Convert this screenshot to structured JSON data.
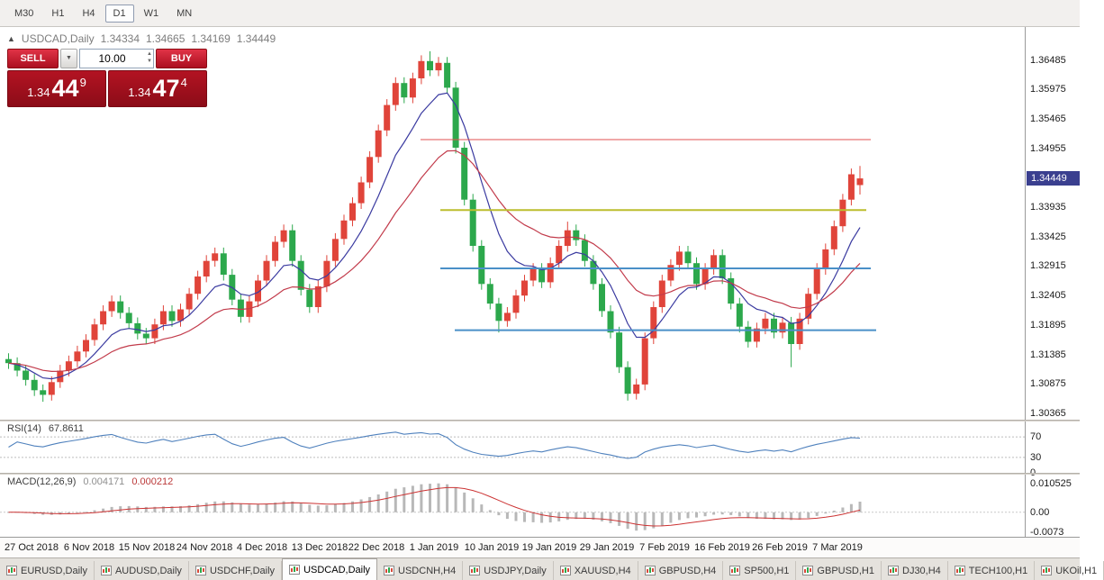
{
  "toolbar": {
    "timeframes": [
      {
        "label": "M30",
        "active": false
      },
      {
        "label": "H1",
        "active": false
      },
      {
        "label": "H4",
        "active": false
      },
      {
        "label": "D1",
        "active": true
      },
      {
        "label": "W1",
        "active": false
      },
      {
        "label": "MN",
        "active": false
      }
    ]
  },
  "chart_header": {
    "symbol_title": "USDCAD,Daily",
    "open": "1.34334",
    "high": "1.34665",
    "low": "1.34169",
    "close": "1.34449"
  },
  "trade_widget": {
    "sell_label": "SELL",
    "buy_label": "BUY",
    "volume": "10.00",
    "sell_price_big": "1.34",
    "sell_price_large": "44",
    "sell_price_sup": "9",
    "buy_price_big": "1.34",
    "buy_price_large": "47",
    "buy_price_sup": "4"
  },
  "price_scale": {
    "current_badge": "1.34449"
  },
  "chart_data": [
    {
      "panel": "main",
      "type": "candlestick",
      "symbol": "USDCAD",
      "timeframe": "Daily",
      "up_color": "#e0443a",
      "down_color": "#2ca84c",
      "price_range": [
        1.3027,
        1.3707
      ],
      "current_price": 1.34449,
      "price_ticks": [
        1.36485,
        1.35975,
        1.35465,
        1.34955,
        1.33935,
        1.33425,
        1.32915,
        1.32405,
        1.31895,
        1.31385,
        1.30875,
        1.30365
      ],
      "date_labels": [
        "27 Oct 2018",
        "6 Nov 2018",
        "15 Nov 2018",
        "24 Nov 2018",
        "4 Dec 2018",
        "13 Dec 2018",
        "22 Dec 2018",
        "1 Jan 2019",
        "10 Jan 2019",
        "19 Jan 2019",
        "29 Jan 2019",
        "7 Feb 2019",
        "16 Feb 2019",
        "26 Feb 2019",
        "7 Mar 2019"
      ],
      "moving_averages": [
        {
          "period": 8,
          "method": "ema",
          "color": "#3a3aa0"
        },
        {
          "period": 20,
          "method": "ema",
          "color": "#c23b4b"
        }
      ],
      "hlines": [
        {
          "price": 1.3512,
          "color": "#e05151",
          "width": 1,
          "x0": 0.41,
          "x1": 0.85
        },
        {
          "price": 1.339,
          "color": "#bcbe2e",
          "width": 2,
          "x0": 0.43,
          "x1": 0.845
        },
        {
          "price": 1.3289,
          "color": "#4a90c8",
          "width": 2,
          "x0": 0.43,
          "x1": 0.85
        },
        {
          "price": 1.3182,
          "color": "#4a90c8",
          "width": 2,
          "x0": 0.444,
          "x1": 0.855
        }
      ],
      "candles": [
        [
          1.3132,
          1.3142,
          1.3115,
          1.3125
        ],
        [
          1.3125,
          1.3135,
          1.3102,
          1.3112
        ],
        [
          1.3112,
          1.3122,
          1.3086,
          1.3096
        ],
        [
          1.3096,
          1.3106,
          1.3068,
          1.3078
        ],
        [
          1.3078,
          1.3088,
          1.3058,
          1.307
        ],
        [
          1.307,
          1.3102,
          1.306,
          1.3092
        ],
        [
          1.3092,
          1.3122,
          1.3082,
          1.3112
        ],
        [
          1.3112,
          1.3138,
          1.3102,
          1.3128
        ],
        [
          1.3128,
          1.3155,
          1.3118,
          1.3145
        ],
        [
          1.3145,
          1.3175,
          1.3135,
          1.3165
        ],
        [
          1.3165,
          1.3202,
          1.3155,
          1.3192
        ],
        [
          1.3192,
          1.3225,
          1.3182,
          1.3215
        ],
        [
          1.3215,
          1.3242,
          1.3205,
          1.3232
        ],
        [
          1.3232,
          1.3242,
          1.3202,
          1.3212
        ],
        [
          1.3212,
          1.3222,
          1.3184,
          1.3194
        ],
        [
          1.3194,
          1.3204,
          1.3166,
          1.3176
        ],
        [
          1.3176,
          1.3186,
          1.3158,
          1.3168
        ],
        [
          1.3168,
          1.3202,
          1.3158,
          1.3192
        ],
        [
          1.3192,
          1.3225,
          1.3182,
          1.3215
        ],
        [
          1.3215,
          1.3225,
          1.3188,
          1.3198
        ],
        [
          1.3198,
          1.3228,
          1.3188,
          1.3218
        ],
        [
          1.3218,
          1.3255,
          1.3208,
          1.3245
        ],
        [
          1.3245,
          1.3285,
          1.3235,
          1.3275
        ],
        [
          1.3275,
          1.3312,
          1.3265,
          1.3302
        ],
        [
          1.3302,
          1.3325,
          1.3292,
          1.3315
        ],
        [
          1.3315,
          1.3325,
          1.3268,
          1.3278
        ],
        [
          1.3278,
          1.3288,
          1.3225,
          1.3235
        ],
        [
          1.3235,
          1.3245,
          1.3195,
          1.3205
        ],
        [
          1.3205,
          1.3242,
          1.3195,
          1.3232
        ],
        [
          1.3232,
          1.3278,
          1.3222,
          1.3268
        ],
        [
          1.3268,
          1.3312,
          1.3258,
          1.3302
        ],
        [
          1.3302,
          1.3345,
          1.3292,
          1.3335
        ],
        [
          1.3335,
          1.3365,
          1.3325,
          1.3355
        ],
        [
          1.3355,
          1.3365,
          1.3292,
          1.3302
        ],
        [
          1.3302,
          1.3312,
          1.3242,
          1.3252
        ],
        [
          1.3252,
          1.3262,
          1.3212,
          1.3222
        ],
        [
          1.3222,
          1.3268,
          1.3212,
          1.3258
        ],
        [
          1.3258,
          1.3312,
          1.3248,
          1.3302
        ],
        [
          1.3302,
          1.335,
          1.3292,
          1.334
        ],
        [
          1.334,
          1.3382,
          1.333,
          1.3372
        ],
        [
          1.3372,
          1.3412,
          1.3362,
          1.3402
        ],
        [
          1.3402,
          1.3448,
          1.3392,
          1.3438
        ],
        [
          1.3438,
          1.3492,
          1.3428,
          1.3482
        ],
        [
          1.3482,
          1.3538,
          1.3472,
          1.3528
        ],
        [
          1.3528,
          1.3582,
          1.3518,
          1.3572
        ],
        [
          1.3572,
          1.362,
          1.3562,
          1.361
        ],
        [
          1.361,
          1.362,
          1.3575,
          1.3585
        ],
        [
          1.3585,
          1.3628,
          1.3575,
          1.3618
        ],
        [
          1.3618,
          1.3658,
          1.3608,
          1.3648
        ],
        [
          1.3648,
          1.3665,
          1.3622,
          1.3632
        ],
        [
          1.3632,
          1.3655,
          1.3622,
          1.3645
        ],
        [
          1.3645,
          1.3655,
          1.3592,
          1.3602
        ],
        [
          1.3602,
          1.3612,
          1.3488,
          1.3498
        ],
        [
          1.3498,
          1.3508,
          1.3398,
          1.3408
        ],
        [
          1.3408,
          1.3418,
          1.3318,
          1.3328
        ],
        [
          1.3328,
          1.3338,
          1.3252,
          1.3262
        ],
        [
          1.3262,
          1.3272,
          1.3218,
          1.3228
        ],
        [
          1.3228,
          1.3238,
          1.3178,
          1.3198
        ],
        [
          1.3198,
          1.3222,
          1.3188,
          1.3212
        ],
        [
          1.3212,
          1.3252,
          1.3202,
          1.3242
        ],
        [
          1.3242,
          1.3278,
          1.3232,
          1.3268
        ],
        [
          1.3268,
          1.3298,
          1.3258,
          1.3288
        ],
        [
          1.3288,
          1.3298,
          1.3255,
          1.3265
        ],
        [
          1.3265,
          1.3308,
          1.3255,
          1.3298
        ],
        [
          1.3298,
          1.3338,
          1.3288,
          1.3328
        ],
        [
          1.3328,
          1.337,
          1.3318,
          1.3355
        ],
        [
          1.3355,
          1.3365,
          1.3328,
          1.3338
        ],
        [
          1.3338,
          1.3348,
          1.3292,
          1.3302
        ],
        [
          1.3302,
          1.3312,
          1.3252,
          1.3262
        ],
        [
          1.3262,
          1.3272,
          1.3205,
          1.3215
        ],
        [
          1.3215,
          1.3225,
          1.3168,
          1.3178
        ],
        [
          1.3178,
          1.3188,
          1.3108,
          1.3118
        ],
        [
          1.3118,
          1.3128,
          1.306,
          1.3072
        ],
        [
          1.3072,
          1.3098,
          1.3062,
          1.3088
        ],
        [
          1.3088,
          1.3178,
          1.3078,
          1.3168
        ],
        [
          1.3168,
          1.3232,
          1.3158,
          1.3222
        ],
        [
          1.3222,
          1.3278,
          1.3212,
          1.3268
        ],
        [
          1.3268,
          1.3305,
          1.3258,
          1.3295
        ],
        [
          1.3295,
          1.3328,
          1.3285,
          1.3318
        ],
        [
          1.3318,
          1.3328,
          1.3288,
          1.3298
        ],
        [
          1.3298,
          1.3308,
          1.3252,
          1.3262
        ],
        [
          1.3262,
          1.3298,
          1.3252,
          1.3288
        ],
        [
          1.3288,
          1.3322,
          1.3278,
          1.3312
        ],
        [
          1.3312,
          1.3322,
          1.3262,
          1.3272
        ],
        [
          1.3272,
          1.3282,
          1.3218,
          1.3228
        ],
        [
          1.3228,
          1.3238,
          1.3178,
          1.3188
        ],
        [
          1.3188,
          1.3198,
          1.3152,
          1.3162
        ],
        [
          1.3162,
          1.3195,
          1.3152,
          1.3185
        ],
        [
          1.3185,
          1.3212,
          1.3175,
          1.3202
        ],
        [
          1.3202,
          1.3212,
          1.3168,
          1.3178
        ],
        [
          1.3178,
          1.3205,
          1.3168,
          1.3195
        ],
        [
          1.3195,
          1.3205,
          1.3118,
          1.3158
        ],
        [
          1.3158,
          1.3212,
          1.3148,
          1.3202
        ],
        [
          1.3202,
          1.3255,
          1.3192,
          1.3245
        ],
        [
          1.3245,
          1.3298,
          1.3235,
          1.3288
        ],
        [
          1.3288,
          1.3332,
          1.3278,
          1.3322
        ],
        [
          1.3322,
          1.3372,
          1.3312,
          1.3362
        ],
        [
          1.3362,
          1.3418,
          1.3352,
          1.3408
        ],
        [
          1.3408,
          1.3462,
          1.3398,
          1.3452
        ],
        [
          1.34334,
          1.34665,
          1.34169,
          1.34449
        ]
      ]
    },
    {
      "panel": "rsi",
      "type": "line",
      "label": "RSI(14)",
      "current_value": "67.8611",
      "period": 14,
      "range": [
        0,
        100
      ],
      "levels": [
        70,
        30
      ],
      "axis_ticks": [
        {
          "label": "70",
          "value": 70
        },
        {
          "label": "30",
          "value": 30
        },
        {
          "label": "0",
          "value": 0
        }
      ],
      "color": "#4f81bd"
    },
    {
      "panel": "macd",
      "type": "macd",
      "label": "MACD(12,26,9)",
      "main_value": "0.004171",
      "signal_value": "0.000212",
      "fast": 12,
      "slow": 26,
      "signal": 9,
      "range": [
        -0.00861,
        0.01372
      ],
      "axis_ticks": [
        {
          "label": "0.010525",
          "value": 0.010525
        },
        {
          "label": "0.00",
          "value": 0
        },
        {
          "label": "-0.0073",
          "value": -0.0073
        }
      ],
      "histogram_color": "#b8b8b8",
      "signal_color": "#cc3333"
    }
  ],
  "tabs": [
    {
      "label": "EURUSD,Daily",
      "active": false
    },
    {
      "label": "AUDUSD,Daily",
      "active": false
    },
    {
      "label": "USDCHF,Daily",
      "active": false
    },
    {
      "label": "USDCAD,Daily",
      "active": true
    },
    {
      "label": "USDCNH,H4",
      "active": false
    },
    {
      "label": "USDJPY,Daily",
      "active": false
    },
    {
      "label": "XAUUSD,H4",
      "active": false
    },
    {
      "label": "GBPUSD,H4",
      "active": false
    },
    {
      "label": "SP500,H1",
      "active": false
    },
    {
      "label": "GBPUSD,H1",
      "active": false
    },
    {
      "label": "DJ30,H4",
      "active": false
    },
    {
      "label": "TECH100,H1",
      "active": false
    },
    {
      "label": "UKOil,H1",
      "active": false
    }
  ]
}
